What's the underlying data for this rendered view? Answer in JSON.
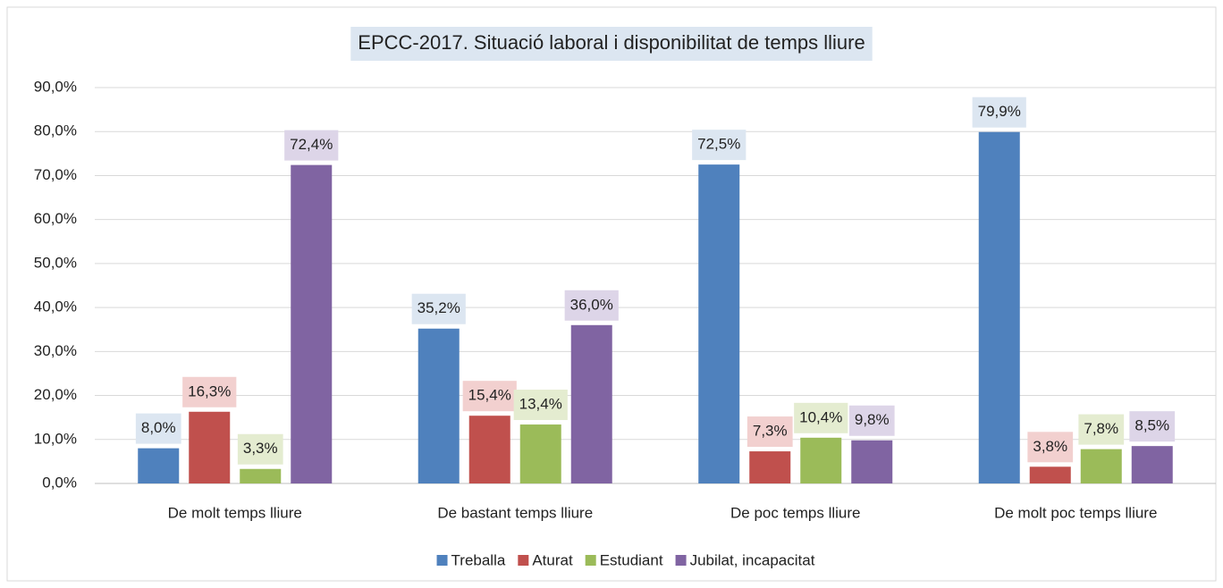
{
  "chart_data": {
    "type": "bar",
    "title": "EPCC-2017. Situació laboral i disponibilitat de temps lliure",
    "categories": [
      "De molt temps lliure",
      "De bastant temps lliure",
      "De poc temps lliure",
      "De molt poc temps lliure"
    ],
    "series": [
      {
        "name": "Treballa",
        "color": "#4f81bd",
        "label_bg": "#dce6f1",
        "values": [
          8.0,
          35.2,
          72.5,
          79.9
        ],
        "value_labels": [
          "8,0%",
          "35,2%",
          "72,5%",
          "79,9%"
        ]
      },
      {
        "name": "Aturat",
        "color": "#c0504d",
        "label_bg": "#f2d0cf",
        "values": [
          16.3,
          15.4,
          7.3,
          3.8
        ],
        "value_labels": [
          "16,3%",
          "15,4%",
          "7,3%",
          "3,8%"
        ]
      },
      {
        "name": "Estudiant",
        "color": "#9bbb59",
        "label_bg": "#e4ecd0",
        "values": [
          3.3,
          13.4,
          10.4,
          7.8
        ],
        "value_labels": [
          "3,3%",
          "13,4%",
          "10,4%",
          "7,8%"
        ]
      },
      {
        "name": "Jubilat, incapacitat",
        "color": "#8064a2",
        "label_bg": "#ddd5e8",
        "values": [
          72.4,
          36.0,
          9.8,
          8.5
        ],
        "value_labels": [
          "72,4%",
          "36,0%",
          "9,8%",
          "8,5%"
        ]
      }
    ],
    "ylim": [
      0,
      90
    ],
    "yticks": [
      {
        "value": 0,
        "label": "0,0%"
      },
      {
        "value": 10,
        "label": "10,0%"
      },
      {
        "value": 20,
        "label": "20,0%"
      },
      {
        "value": 30,
        "label": "30,0%"
      },
      {
        "value": 40,
        "label": "40,0%"
      },
      {
        "value": 50,
        "label": "50,0%"
      },
      {
        "value": 60,
        "label": "60,0%"
      },
      {
        "value": 70,
        "label": "70,0%"
      },
      {
        "value": 80,
        "label": "80,0%"
      },
      {
        "value": 90,
        "label": "90,0%"
      }
    ],
    "grid": true,
    "legend": "bottom"
  }
}
